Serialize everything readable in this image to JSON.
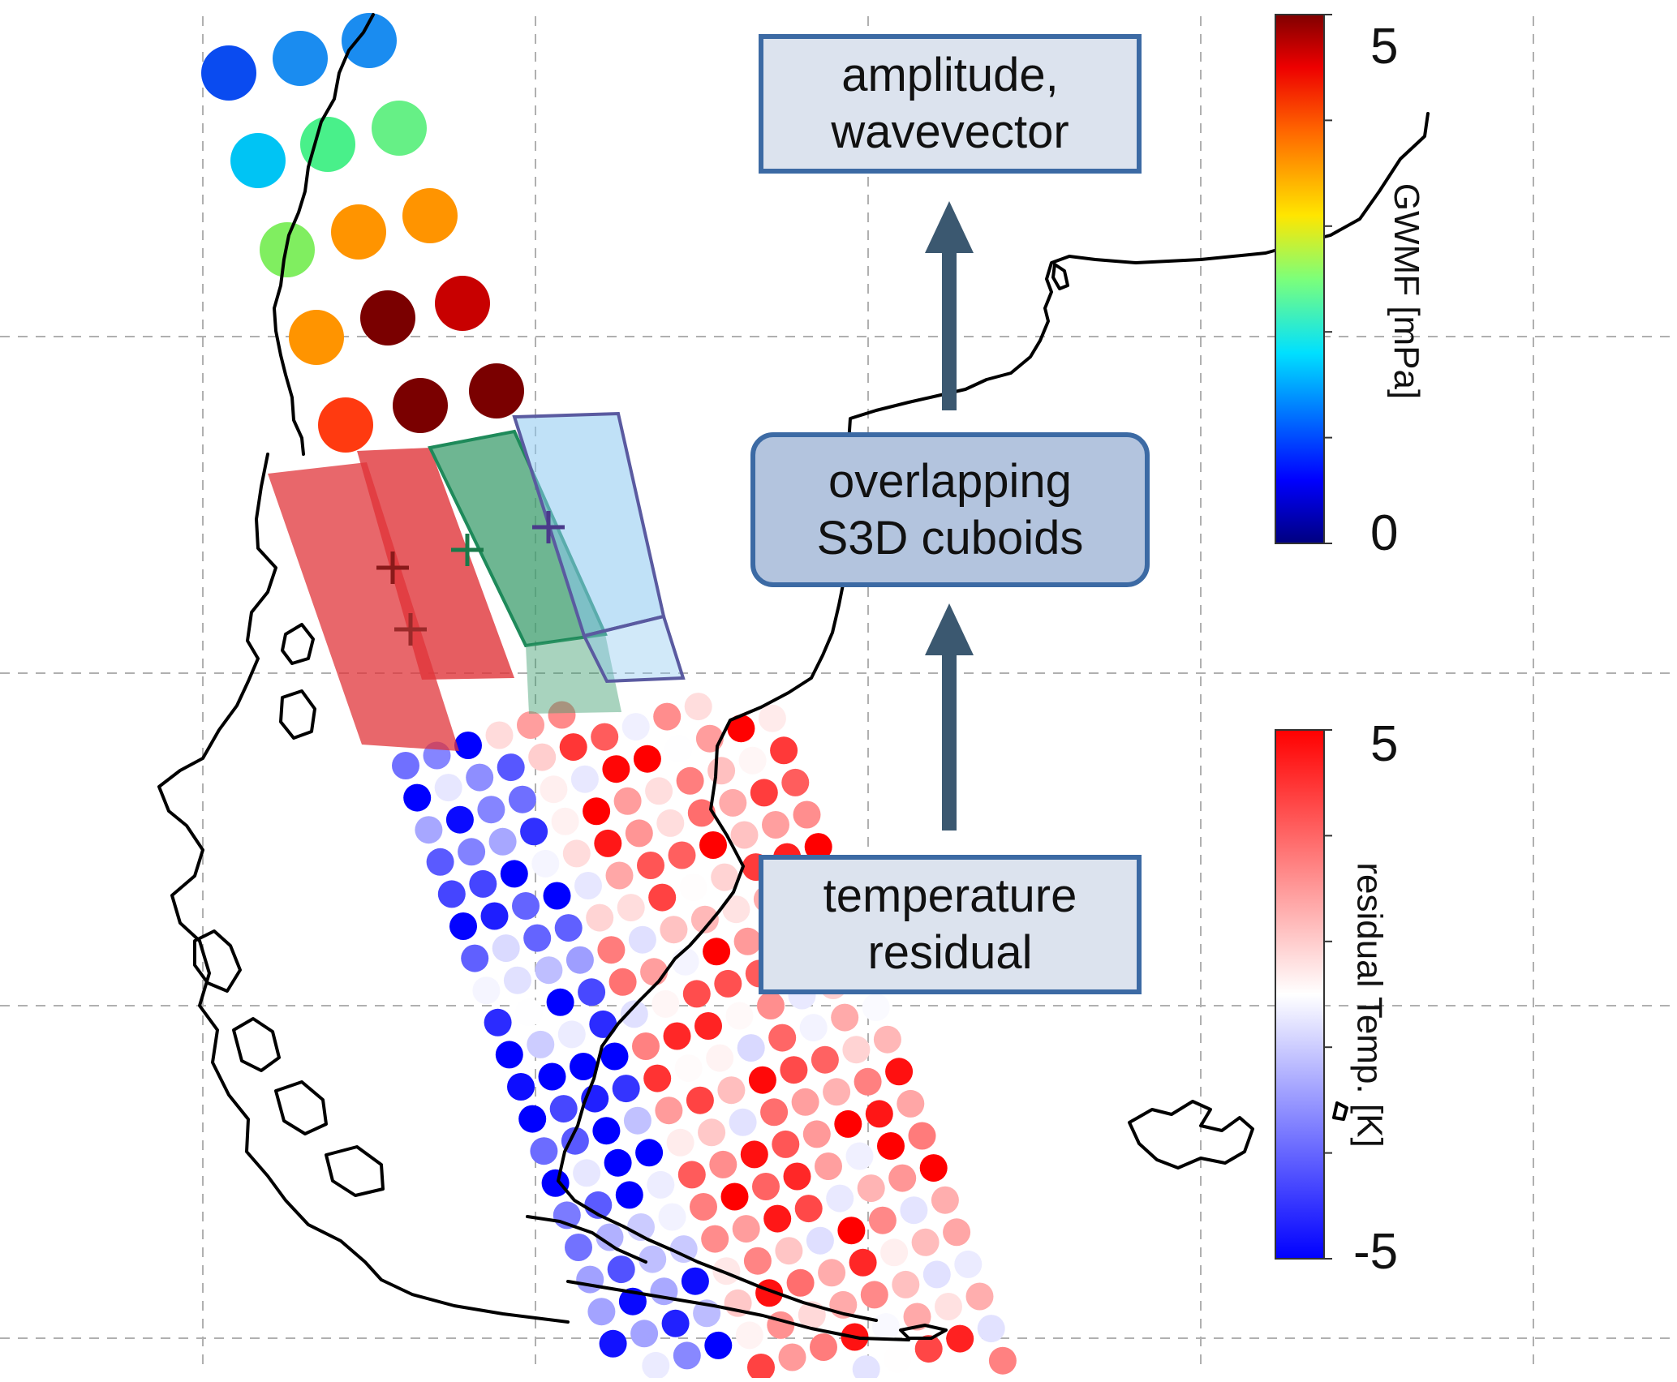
{
  "flow": {
    "amplitude_box": "amplitude,\nwavevector",
    "cuboids_box": "overlapping\nS3D cuboids",
    "residual_box": "temperature\nresidual"
  },
  "colorbars": {
    "gwmf": {
      "title": "GWMF [mPa]",
      "max_label": "5",
      "min_label": "0",
      "min": 0,
      "max": 5
    },
    "residual_temp": {
      "title": "residual Temp. [K]",
      "max_label": "5",
      "min_label": "-5",
      "min": -5,
      "max": 5
    }
  },
  "colors": {
    "box_border": "#3c6aa4",
    "box_fill_light": "#dce3ee",
    "box_fill_medium": "#b3c4de",
    "arrow": "#3b5870",
    "coastline": "#000000",
    "grid": "#b0b0b0",
    "cuboid_red": "#e0343a",
    "cuboid_green": "#3e9e6e",
    "cuboid_blue": "#8cc8f0"
  }
}
